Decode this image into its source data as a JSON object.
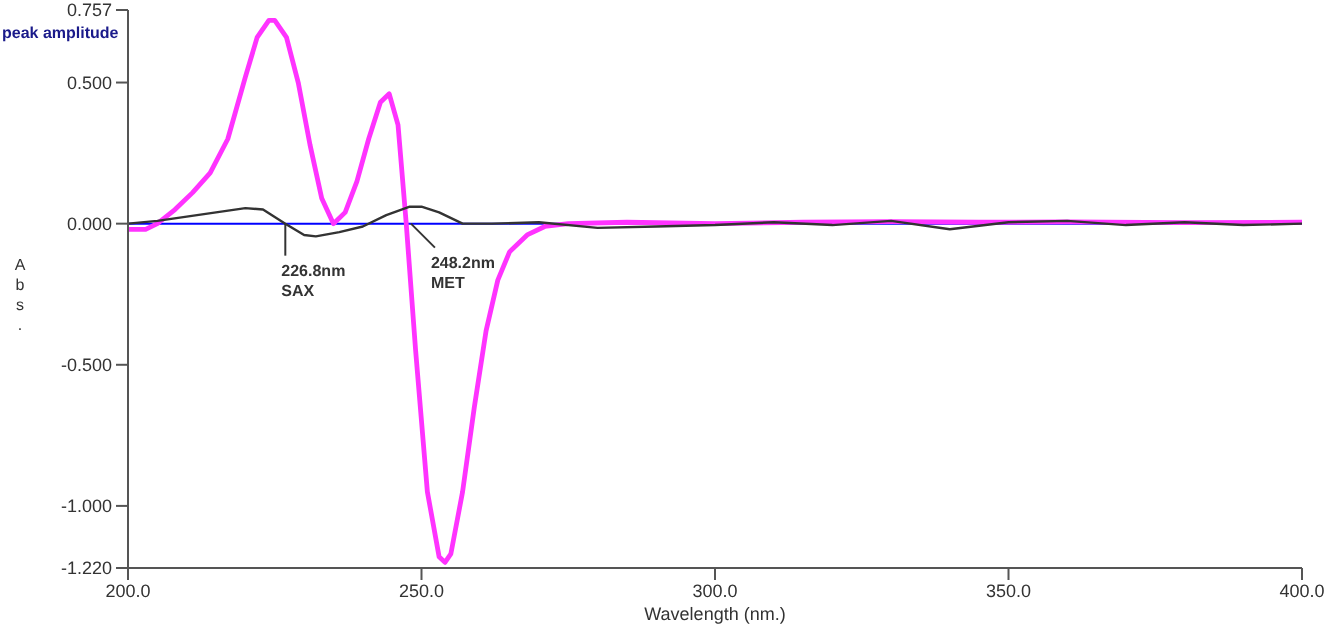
{
  "chart_data": {
    "type": "line",
    "xlabel": "Wavelength (nm.)",
    "ylabel": "Abs.",
    "annotations": [
      "peak amplitude",
      {
        "text": "226.8nm\nSAX",
        "x": 226.8,
        "y": 0
      },
      {
        "text": "248.2nm\nMET",
        "x": 248.2,
        "y": 0
      }
    ],
    "xlim": [
      200,
      400
    ],
    "xticks": [
      {
        "value": 200,
        "label": "200.0"
      },
      {
        "value": 250,
        "label": "250.0"
      },
      {
        "value": 300,
        "label": "300.0"
      },
      {
        "value": 350,
        "label": "350.0"
      },
      {
        "value": 400,
        "label": "400.0"
      }
    ],
    "ylim": [
      -1.22,
      0.757
    ],
    "yticks": [
      {
        "value": -1.22,
        "label": "-1.220"
      },
      {
        "value": -1,
        "label": "-1.000"
      },
      {
        "value": -0.5,
        "label": "-0.500"
      },
      {
        "value": 0,
        "label": "0.000"
      },
      {
        "value": 0.5,
        "label": "0.500"
      },
      {
        "value": 0.757,
        "label": "0.757"
      }
    ],
    "grid": false,
    "legend": false,
    "marker": "none",
    "line_style": "solid",
    "ref_lines": [
      {
        "axis": "y",
        "value": 0,
        "color": "#0000ff"
      }
    ],
    "series": [
      {
        "color": "#ff33ff",
        "x": [
          200,
          203,
          205,
          208,
          211,
          214,
          217,
          220,
          222,
          224,
          225,
          227,
          229,
          231,
          233,
          235,
          237,
          239,
          241,
          243,
          244.5,
          246,
          247.4,
          249,
          251,
          253,
          254,
          255,
          257,
          259,
          261,
          263,
          265,
          268,
          271,
          275,
          285,
          300,
          315,
          330,
          345,
          360,
          380,
          400
        ],
        "values": [
          -0.02,
          -0.02,
          0,
          0.05,
          0.11,
          0.18,
          0.3,
          0.52,
          0.66,
          0.72,
          0.72,
          0.66,
          0.5,
          0.28,
          0.09,
          0,
          0.04,
          0.15,
          0.3,
          0.43,
          0.46,
          0.35,
          0,
          -0.45,
          -0.95,
          -1.18,
          -1.2,
          -1.17,
          -0.95,
          -0.65,
          -0.38,
          -0.2,
          -0.1,
          -0.04,
          -0.01,
          0,
          0.005,
          0,
          0.005,
          0.007,
          0.005,
          0.006,
          0.004,
          0.005
        ]
      },
      {
        "color": "#333333",
        "x": [
          200,
          205,
          210,
          215,
          220,
          223,
          226.8,
          230,
          232,
          236,
          240,
          244,
          248,
          250,
          253,
          257,
          262,
          270,
          280,
          290,
          300,
          310,
          320,
          330,
          340,
          350,
          360,
          370,
          380,
          390,
          400
        ],
        "values": [
          0,
          0.01,
          0.025,
          0.04,
          0.055,
          0.05,
          0,
          -0.04,
          -0.045,
          -0.03,
          -0.01,
          0.03,
          0.06,
          0.06,
          0.04,
          0,
          0,
          0.005,
          -0.015,
          -0.01,
          -0.005,
          0.005,
          -0.005,
          0.01,
          -0.02,
          0.005,
          0.01,
          -0.005,
          0.005,
          -0.005,
          0
        ]
      }
    ]
  }
}
